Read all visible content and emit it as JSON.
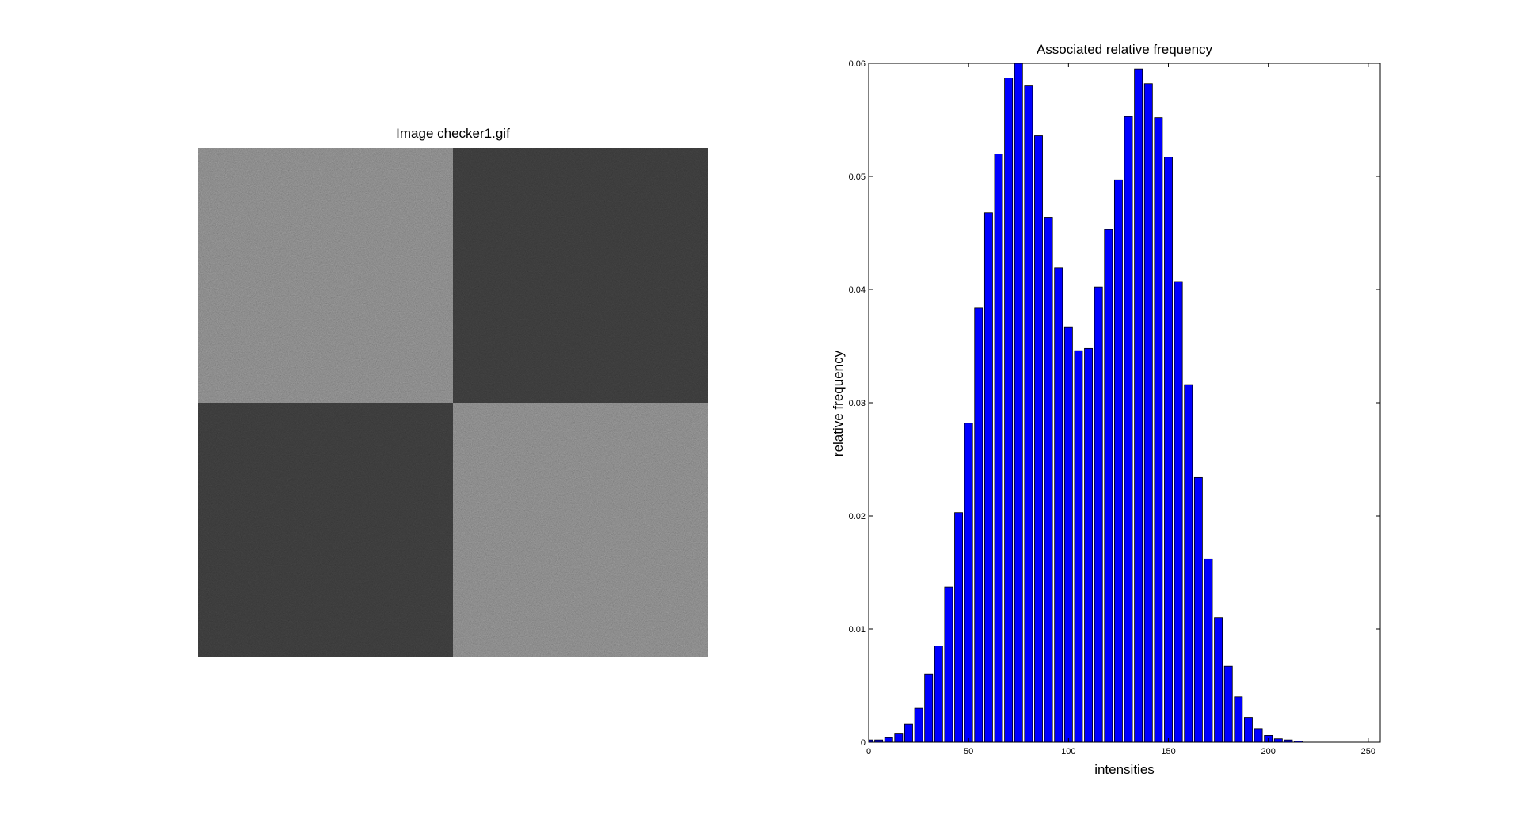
{
  "chart_data": [
    {
      "type": "image",
      "title": "Image checker1.gif"
    },
    {
      "type": "bar",
      "title": "Associated relative frequency",
      "x_label": "intensities",
      "y_label": "relative frequency",
      "x": [
        0,
        5,
        10,
        15,
        20,
        25,
        30,
        35,
        40,
        45,
        50,
        55,
        60,
        65,
        70,
        75,
        80,
        85,
        90,
        95,
        100,
        105,
        110,
        115,
        120,
        125,
        130,
        135,
        140,
        145,
        150,
        155,
        160,
        165,
        170,
        175,
        180,
        185,
        190,
        195,
        200,
        205,
        210,
        215
      ],
      "values": [
        0.0002,
        0.0002,
        0.0004,
        0.0008,
        0.0016,
        0.003,
        0.006,
        0.0085,
        0.0137,
        0.0203,
        0.0282,
        0.0384,
        0.0468,
        0.052,
        0.0587,
        0.06,
        0.058,
        0.0536,
        0.0464,
        0.0419,
        0.0367,
        0.0346,
        0.0348,
        0.0402,
        0.0453,
        0.0497,
        0.0553,
        0.0595,
        0.0582,
        0.0552,
        0.0517,
        0.0407,
        0.0316,
        0.0234,
        0.0162,
        0.011,
        0.0067,
        0.004,
        0.0022,
        0.0012,
        0.0006,
        0.0003,
        0.0002,
        0.0001
      ],
      "color": "#0000ff",
      "xlim": [
        0,
        256
      ],
      "ylim": [
        0,
        0.06
      ],
      "xticks": [
        0,
        50,
        100,
        150,
        200,
        250
      ],
      "yticks": [
        0,
        0.01,
        0.02,
        0.03,
        0.04,
        0.05,
        0.06
      ]
    }
  ]
}
